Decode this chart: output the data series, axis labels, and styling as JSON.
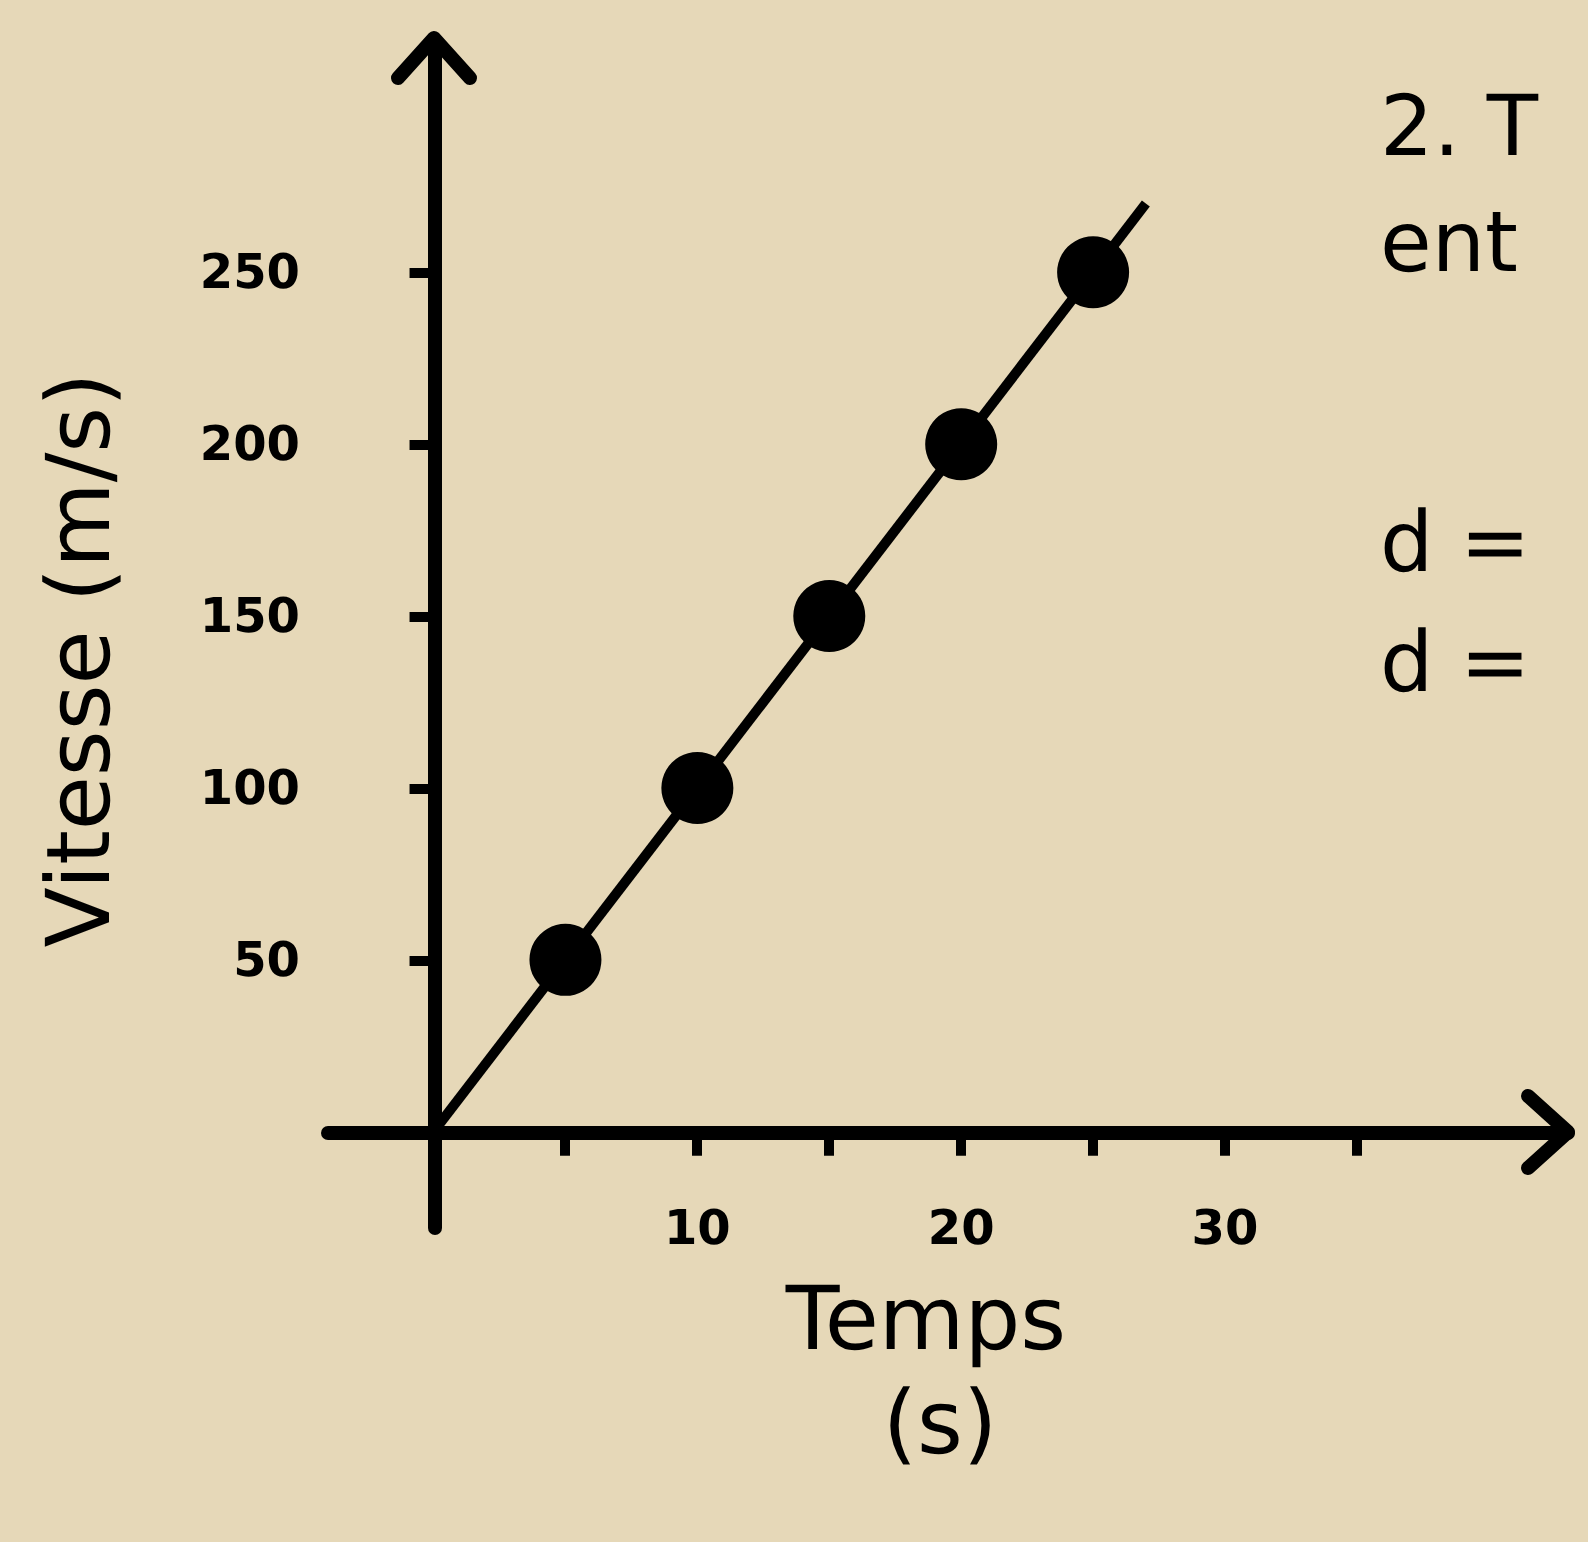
{
  "chart_data": {
    "type": "scatter",
    "xlabel": "Temps (s)",
    "ylabel": "Vitesse (m/s)",
    "annotations": [
      "2. T",
      "ent",
      "d =",
      "d ="
    ],
    "xlim": [
      -4,
      43
    ],
    "ylim": [
      -28,
      317
    ],
    "xticks": [
      {
        "value": 5,
        "label": null
      },
      10,
      {
        "value": 15,
        "label": null
      },
      20,
      {
        "value": 25,
        "label": null
      },
      30,
      {
        "value": 35,
        "label": null
      }
    ],
    "yticks": [
      50,
      100,
      150,
      200,
      250
    ],
    "x": [
      5,
      10,
      15,
      20,
      25
    ],
    "series": [
      {
        "color": "#000000",
        "values": [
          50,
          100,
          150,
          200,
          250
        ],
        "marker": "circle"
      },
      {
        "type": "line",
        "color": "#000000",
        "x": [
          0,
          27
        ],
        "values": [
          0,
          270
        ],
        "marker": "none"
      }
    ],
    "tick_labels": "xy"
  }
}
